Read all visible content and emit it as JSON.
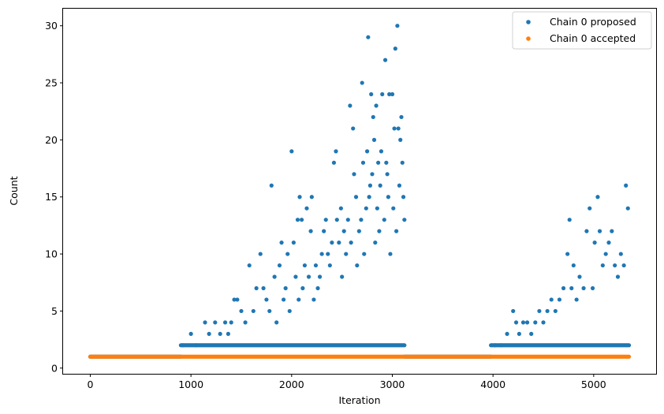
{
  "chart_data": {
    "type": "scatter",
    "xlabel": "Iteration",
    "ylabel": "Count",
    "xlim": [
      -270,
      5620
    ],
    "ylim": [
      -0.5,
      31.5
    ],
    "xticks": [
      0,
      1000,
      2000,
      3000,
      4000,
      5000
    ],
    "yticks": [
      0,
      5,
      10,
      15,
      20,
      25,
      30
    ],
    "grid": false,
    "legend_position": "top-right",
    "series": [
      {
        "name": "Chain 0 proposed",
        "color": "#1f77b4",
        "regions": [
          {
            "from": 0,
            "to": 900,
            "y": 1
          },
          {
            "from": 900,
            "to": 3120,
            "y": 2
          },
          {
            "from": 3120,
            "to": 3980,
            "y": 1
          },
          {
            "from": 3980,
            "to": 5350,
            "y": 2
          }
        ],
        "points": [
          [
            920,
            2
          ],
          [
            1000,
            3
          ],
          [
            1050,
            2
          ],
          [
            1140,
            4
          ],
          [
            1180,
            3
          ],
          [
            1240,
            4
          ],
          [
            1290,
            3
          ],
          [
            1340,
            4
          ],
          [
            1370,
            3
          ],
          [
            1400,
            4
          ],
          [
            1430,
            6
          ],
          [
            1460,
            6
          ],
          [
            1500,
            5
          ],
          [
            1540,
            4
          ],
          [
            1580,
            9
          ],
          [
            1620,
            5
          ],
          [
            1650,
            7
          ],
          [
            1690,
            10
          ],
          [
            1720,
            7
          ],
          [
            1750,
            6
          ],
          [
            1780,
            5
          ],
          [
            1800,
            16
          ],
          [
            1830,
            8
          ],
          [
            1850,
            4
          ],
          [
            1880,
            9
          ],
          [
            1900,
            11
          ],
          [
            1920,
            6
          ],
          [
            1940,
            7
          ],
          [
            1960,
            10
          ],
          [
            1980,
            5
          ],
          [
            2000,
            19
          ],
          [
            2020,
            11
          ],
          [
            2040,
            8
          ],
          [
            2060,
            13
          ],
          [
            2070,
            6
          ],
          [
            2080,
            15
          ],
          [
            2100,
            13
          ],
          [
            2110,
            7
          ],
          [
            2130,
            9
          ],
          [
            2150,
            14
          ],
          [
            2170,
            8
          ],
          [
            2190,
            12
          ],
          [
            2200,
            15
          ],
          [
            2220,
            6
          ],
          [
            2240,
            9
          ],
          [
            2260,
            7
          ],
          [
            2280,
            8
          ],
          [
            2300,
            10
          ],
          [
            2320,
            12
          ],
          [
            2340,
            13
          ],
          [
            2360,
            10
          ],
          [
            2380,
            9
          ],
          [
            2400,
            11
          ],
          [
            2420,
            18
          ],
          [
            2440,
            19
          ],
          [
            2450,
            13
          ],
          [
            2470,
            11
          ],
          [
            2490,
            14
          ],
          [
            2500,
            8
          ],
          [
            2520,
            12
          ],
          [
            2540,
            10
          ],
          [
            2560,
            13
          ],
          [
            2580,
            23
          ],
          [
            2590,
            11
          ],
          [
            2610,
            21
          ],
          [
            2620,
            17
          ],
          [
            2640,
            15
          ],
          [
            2650,
            9
          ],
          [
            2670,
            12
          ],
          [
            2690,
            13
          ],
          [
            2700,
            25
          ],
          [
            2710,
            18
          ],
          [
            2720,
            10
          ],
          [
            2740,
            14
          ],
          [
            2750,
            19
          ],
          [
            2760,
            29
          ],
          [
            2770,
            15
          ],
          [
            2780,
            16
          ],
          [
            2790,
            24
          ],
          [
            2800,
            17
          ],
          [
            2810,
            22
          ],
          [
            2820,
            20
          ],
          [
            2830,
            11
          ],
          [
            2840,
            23
          ],
          [
            2850,
            14
          ],
          [
            2860,
            18
          ],
          [
            2870,
            12
          ],
          [
            2880,
            16
          ],
          [
            2890,
            19
          ],
          [
            2900,
            24
          ],
          [
            2920,
            13
          ],
          [
            2930,
            27
          ],
          [
            2940,
            18
          ],
          [
            2950,
            17
          ],
          [
            2960,
            15
          ],
          [
            2970,
            24
          ],
          [
            2980,
            10
          ],
          [
            3000,
            24
          ],
          [
            3010,
            14
          ],
          [
            3020,
            21
          ],
          [
            3030,
            28
          ],
          [
            3040,
            12
          ],
          [
            3050,
            30
          ],
          [
            3060,
            21
          ],
          [
            3070,
            16
          ],
          [
            3080,
            20
          ],
          [
            3090,
            22
          ],
          [
            3100,
            18
          ],
          [
            3110,
            15
          ],
          [
            3120,
            13
          ],
          [
            4020,
            2
          ],
          [
            4080,
            2
          ],
          [
            4140,
            3
          ],
          [
            4200,
            5
          ],
          [
            4230,
            4
          ],
          [
            4260,
            3
          ],
          [
            4300,
            4
          ],
          [
            4340,
            4
          ],
          [
            4380,
            3
          ],
          [
            4420,
            4
          ],
          [
            4460,
            5
          ],
          [
            4500,
            4
          ],
          [
            4540,
            5
          ],
          [
            4580,
            6
          ],
          [
            4620,
            5
          ],
          [
            4660,
            6
          ],
          [
            4700,
            7
          ],
          [
            4740,
            10
          ],
          [
            4760,
            13
          ],
          [
            4780,
            7
          ],
          [
            4800,
            9
          ],
          [
            4830,
            6
          ],
          [
            4860,
            8
          ],
          [
            4900,
            7
          ],
          [
            4930,
            12
          ],
          [
            4960,
            14
          ],
          [
            4990,
            7
          ],
          [
            5010,
            11
          ],
          [
            5040,
            15
          ],
          [
            5060,
            12
          ],
          [
            5090,
            9
          ],
          [
            5120,
            10
          ],
          [
            5150,
            11
          ],
          [
            5180,
            12
          ],
          [
            5210,
            9
          ],
          [
            5240,
            8
          ],
          [
            5270,
            10
          ],
          [
            5300,
            9
          ],
          [
            5320,
            16
          ],
          [
            5340,
            14
          ]
        ]
      },
      {
        "name": "Chain 0 accepted",
        "color": "#ff7f0e",
        "regions": [
          {
            "from": 0,
            "to": 5350,
            "y": 1
          }
        ],
        "points": []
      }
    ]
  }
}
